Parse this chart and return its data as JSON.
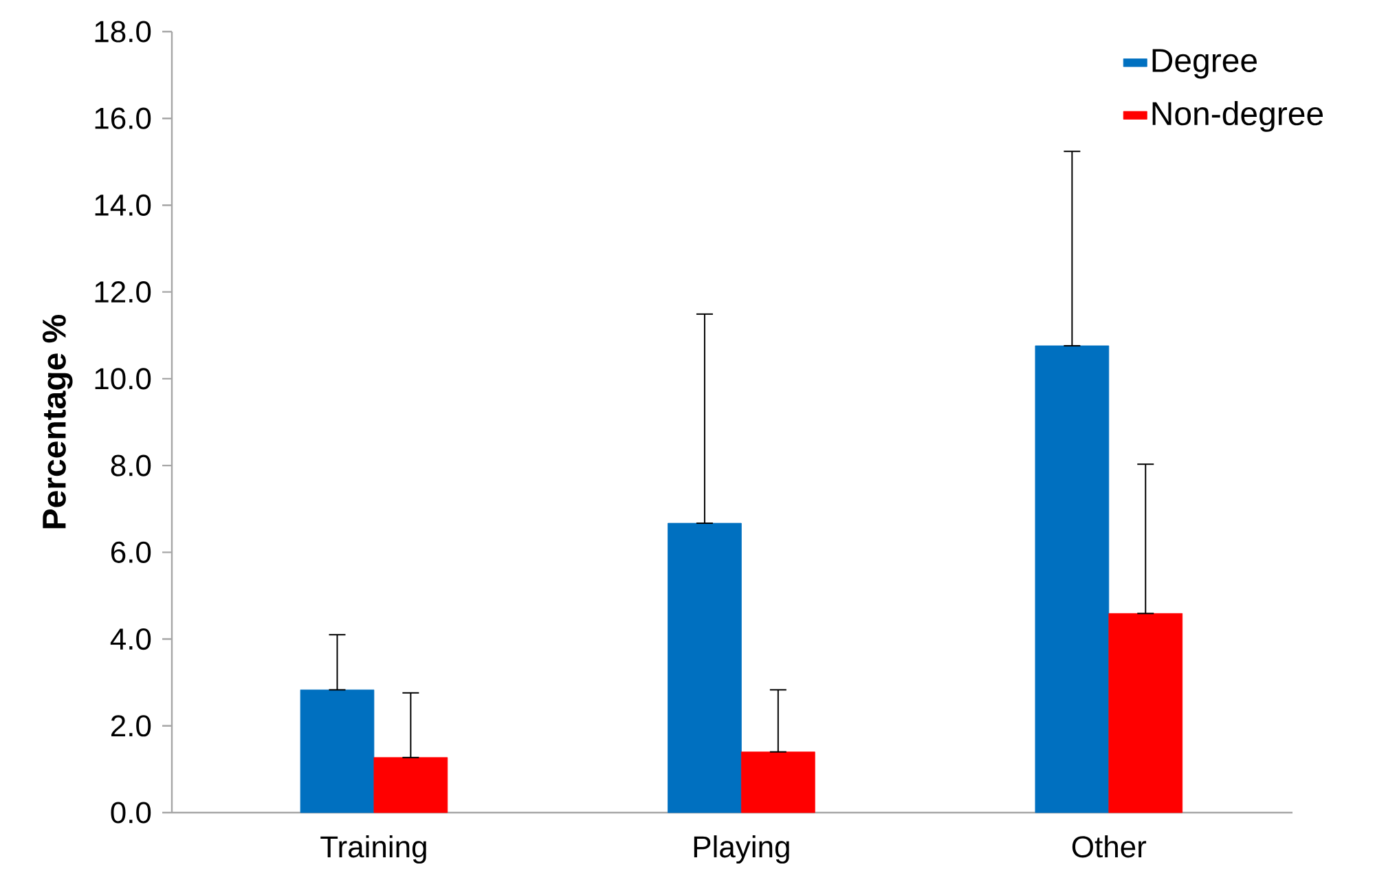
{
  "chart_data": {
    "type": "bar",
    "ylabel": "Percentage %",
    "categories": [
      "Training",
      "Playing",
      "Other"
    ],
    "series": [
      {
        "name": "Degree",
        "color": "#0070c0",
        "values": [
          2.83,
          6.67,
          10.76
        ],
        "errors": [
          [
            2.83,
            4.1
          ],
          [
            6.67,
            11.49
          ],
          [
            10.76,
            15.24
          ]
        ]
      },
      {
        "name": "Non-degree",
        "color": "#ff0000",
        "values": [
          1.27,
          1.4,
          4.59
        ],
        "errors": [
          [
            1.27,
            2.76
          ],
          [
            1.4,
            2.83
          ],
          [
            4.59,
            8.03
          ]
        ]
      }
    ],
    "ylim": [
      0,
      18
    ],
    "yticks": [
      {
        "value": 0,
        "label": "0.0"
      },
      {
        "value": 2,
        "label": "2.0"
      },
      {
        "value": 4,
        "label": "4.0"
      },
      {
        "value": 6,
        "label": "6.0"
      },
      {
        "value": 8,
        "label": "8.0"
      },
      {
        "value": 10,
        "label": "10.0"
      },
      {
        "value": 12,
        "label": "12.0"
      },
      {
        "value": 14,
        "label": "14.0"
      },
      {
        "value": 16,
        "label": "16.0"
      },
      {
        "value": 18,
        "label": "18.0"
      }
    ],
    "grid": false,
    "legend": "top right"
  }
}
